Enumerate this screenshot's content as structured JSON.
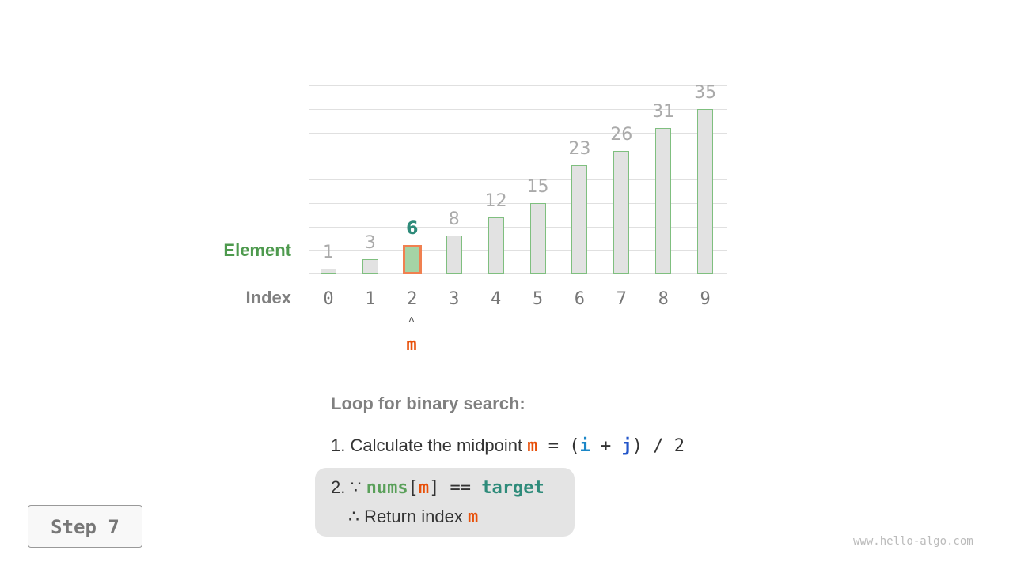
{
  "labels": {
    "element": "Element",
    "index": "Index"
  },
  "array": [
    1,
    3,
    6,
    8,
    12,
    15,
    23,
    26,
    31,
    35
  ],
  "indices": [
    "0",
    "1",
    "2",
    "3",
    "4",
    "5",
    "6",
    "7",
    "8",
    "9"
  ],
  "highlight_index": 2,
  "pointer": {
    "arrow": "˄",
    "label": "m"
  },
  "scale_max": 40,
  "loop_title": "Loop for binary search:",
  "step1": {
    "prefix": "1. Calculate the midpoint ",
    "m": "m",
    "eq": " = (",
    "i": "i",
    "plus": " + ",
    "j": "j",
    "rest": ") / 2"
  },
  "step2": {
    "prefix": "2. ∵ ",
    "nums": "nums",
    "lb": "[",
    "m": "m",
    "rb": "]",
    "eq": " == ",
    "target": "target",
    "line2_prefix": "∴ Return index ",
    "line2_m": "m"
  },
  "step_button": "Step 7",
  "watermark": "www.hello-algo.com",
  "colors": {
    "element": "#4e9a4e",
    "index": "#808080",
    "m": "#e8500a",
    "i": "#1a86c7",
    "j": "#2456c9",
    "nums": "#5aa05a",
    "target": "#2e8b7a",
    "highlight_border": "#f08050"
  }
}
